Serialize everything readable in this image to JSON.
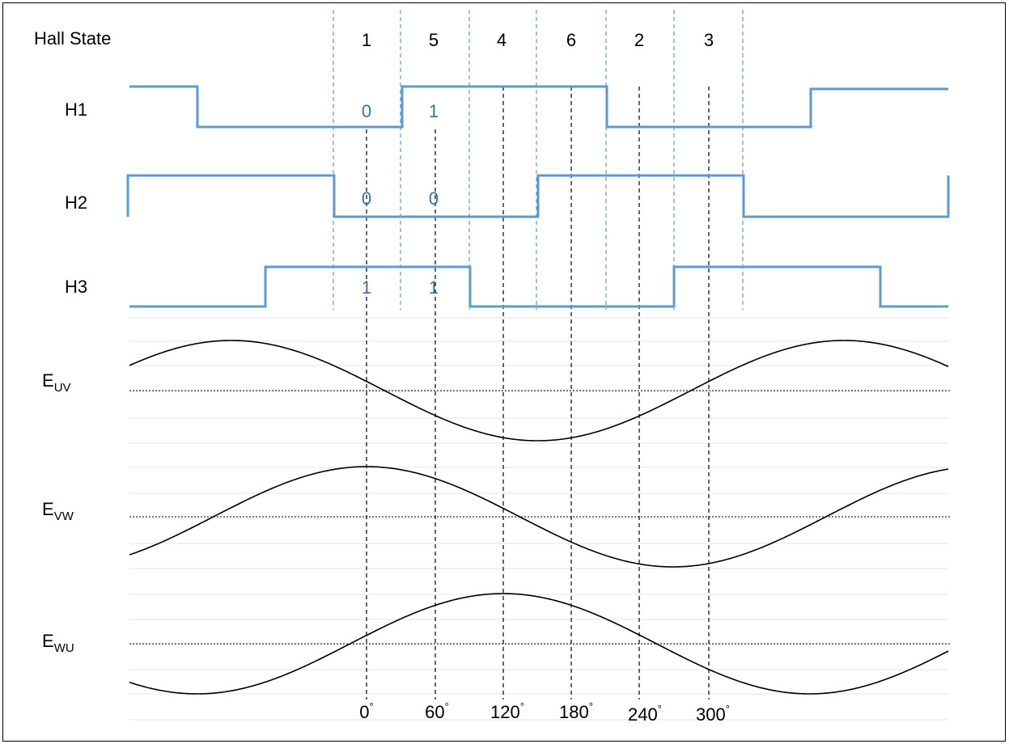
{
  "header_label": "Hall State",
  "hall_states": [
    "1",
    "5",
    "4",
    "6",
    "2",
    "3"
  ],
  "signals": [
    {
      "name": "H1",
      "bits": [
        "0",
        "1"
      ]
    },
    {
      "name": "H2",
      "bits": [
        "0",
        "0"
      ]
    },
    {
      "name": "H3",
      "bits": [
        "1",
        "1"
      ]
    }
  ],
  "emf": [
    {
      "base": "E",
      "sub": "UV"
    },
    {
      "base": "E",
      "sub": "VW"
    },
    {
      "base": "E",
      "sub": "WU"
    }
  ],
  "angles": [
    {
      "value": "0",
      "unit": "°"
    },
    {
      "value": "60",
      "unit": "°"
    },
    {
      "value": "120",
      "unit": "°"
    },
    {
      "value": "180",
      "unit": "°"
    },
    {
      "value": "240",
      "unit": "°"
    },
    {
      "value": "300",
      "unit": "°"
    }
  ],
  "colors": {
    "hall_line": "#5B9BD5",
    "bit_text": "#2E75B6",
    "divider": "#5B9BD5",
    "wave": "#000000",
    "grid": "#e6e6e6"
  }
}
